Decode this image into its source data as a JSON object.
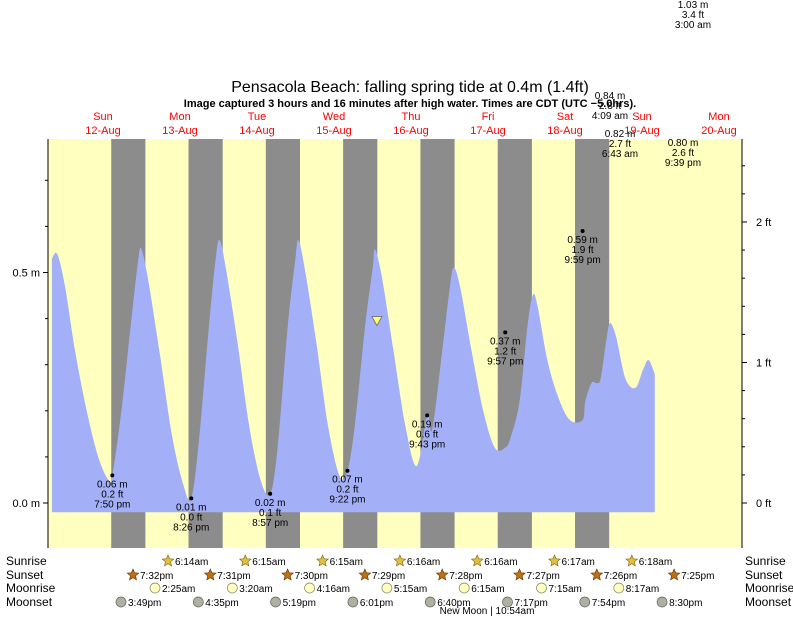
{
  "chart_data": {
    "type": "area",
    "title": "Pensacola Beach: falling  spring tide at 0.4m (1.4ft)",
    "subtitle": "Image captured 3 hours and 16 minutes after high water. Times are CDT (UTC −5.0hrs).",
    "colors": {
      "tide_fill": "#a3b0f8",
      "day_bg": "#ffffc0",
      "night_bg": "#8c8c8c",
      "day_label": "#ff0000",
      "marker": "#ffff66"
    },
    "days": [
      {
        "name": "Sun",
        "date": "12-Aug"
      },
      {
        "name": "Mon",
        "date": "13-Aug"
      },
      {
        "name": "Tue",
        "date": "14-Aug"
      },
      {
        "name": "Wed",
        "date": "15-Aug"
      },
      {
        "name": "Thu",
        "date": "16-Aug"
      },
      {
        "name": "Fri",
        "date": "17-Aug"
      },
      {
        "name": "Sat",
        "date": "18-Aug"
      },
      {
        "name": "Sun",
        "date": "19-Aug"
      },
      {
        "name": "Mon",
        "date": "20-Aug"
      }
    ],
    "y_left_ticks": [
      "0.0 m",
      "0.5 m"
    ],
    "y_right_ticks": [
      "0 ft",
      "1 ft",
      "2 ft"
    ],
    "ylim_m": [
      -0.07,
      0.78
    ],
    "current_level_m": 0.4,
    "extremes": [
      {
        "t": 1.832,
        "m": 0.06,
        "m_txt": "0.06 m",
        "ft_txt": "0.2 ft",
        "time": "7:50 pm",
        "kind": "low"
      },
      {
        "t": 2.853,
        "m": 0.01,
        "m_txt": "0.01 m",
        "ft_txt": "0.0 ft",
        "time": "8:26 pm",
        "kind": "low"
      },
      {
        "t": 3.874,
        "m": 0.02,
        "m_txt": "0.02 m",
        "ft_txt": "0.1 ft",
        "time": "8:57 pm",
        "kind": "low"
      },
      {
        "t": 4.874,
        "m": 0.07,
        "m_txt": "0.07 m",
        "ft_txt": "0.2 ft",
        "time": "9:22 pm",
        "kind": "low"
      },
      {
        "t": 5.905,
        "m": 0.19,
        "m_txt": "0.19 m",
        "ft_txt": "0.6 ft",
        "time": "9:43 pm",
        "kind": "low"
      },
      {
        "t": 6.915,
        "m": 0.37,
        "m_txt": "0.37 m",
        "ft_txt": "1.2 ft",
        "time": "9:57 pm",
        "kind": "low"
      },
      {
        "t": 7.916,
        "m": 0.59,
        "m_txt": "0.59 m",
        "ft_txt": "1.9 ft",
        "time": "9:59 pm",
        "kind": "low"
      },
      {
        "t": 8.28,
        "m": 0.82,
        "m_txt": "0.82 m",
        "ft_txt": "2.7 ft",
        "time": "6:43 am",
        "kind": "high"
      },
      {
        "t": 8.902,
        "m": 0.8,
        "m_txt": "0.80 m",
        "ft_txt": "2.6 ft",
        "time": "9:39 pm",
        "kind": "high"
      },
      {
        "t": 9.17,
        "m": 0.84,
        "m_txt": "0.84 m",
        "ft_txt": "2.8 ft",
        "time": "4:09 am",
        "kind": "high"
      },
      {
        "t": 10.125,
        "m": 1.03,
        "m_txt": "1.03 m",
        "ft_txt": "3.4 ft",
        "time": "3:00 am",
        "kind": "high"
      }
    ],
    "curve": [
      [
        1.05,
        0.53
      ],
      [
        1.12,
        0.54
      ],
      [
        1.22,
        0.47
      ],
      [
        1.35,
        0.33
      ],
      [
        1.5,
        0.2
      ],
      [
        1.65,
        0.1
      ],
      [
        1.78,
        0.05
      ],
      [
        1.832,
        0.06
      ],
      [
        1.95,
        0.2
      ],
      [
        2.08,
        0.4
      ],
      [
        2.17,
        0.53
      ],
      [
        2.21,
        0.55
      ],
      [
        2.3,
        0.48
      ],
      [
        2.45,
        0.32
      ],
      [
        2.6,
        0.15
      ],
      [
        2.75,
        0.04
      ],
      [
        2.853,
        0.01
      ],
      [
        2.95,
        0.13
      ],
      [
        3.08,
        0.38
      ],
      [
        3.17,
        0.53
      ],
      [
        3.22,
        0.57
      ],
      [
        3.3,
        0.51
      ],
      [
        3.45,
        0.35
      ],
      [
        3.6,
        0.17
      ],
      [
        3.75,
        0.05
      ],
      [
        3.874,
        0.02
      ],
      [
        3.97,
        0.12
      ],
      [
        4.1,
        0.38
      ],
      [
        4.2,
        0.53
      ],
      [
        4.24,
        0.57
      ],
      [
        4.32,
        0.51
      ],
      [
        4.47,
        0.35
      ],
      [
        4.62,
        0.17
      ],
      [
        4.77,
        0.06
      ],
      [
        4.874,
        0.07
      ],
      [
        4.97,
        0.17
      ],
      [
        5.1,
        0.38
      ],
      [
        5.2,
        0.51
      ],
      [
        5.23,
        0.55
      ],
      [
        5.32,
        0.49
      ],
      [
        5.47,
        0.33
      ],
      [
        5.62,
        0.17
      ],
      [
        5.77,
        0.08
      ],
      [
        5.905,
        0.19
      ],
      [
        5.97,
        0.16
      ],
      [
        6.1,
        0.33
      ],
      [
        6.2,
        0.47
      ],
      [
        6.25,
        0.51
      ],
      [
        6.33,
        0.47
      ],
      [
        6.48,
        0.33
      ],
      [
        6.63,
        0.2
      ],
      [
        6.78,
        0.12
      ],
      [
        6.915,
        0.37
      ],
      [
        6.98,
        0.14
      ],
      [
        7.1,
        0.22
      ],
      [
        7.2,
        0.38
      ],
      [
        7.27,
        0.45
      ],
      [
        7.33,
        0.43
      ],
      [
        7.46,
        0.31
      ],
      [
        7.6,
        0.23
      ],
      [
        7.75,
        0.18
      ],
      [
        7.916,
        0.59
      ],
      [
        7.95,
        0.22
      ],
      [
        8.03,
        0.26
      ],
      [
        8.1,
        0.26
      ],
      [
        8.15,
        0.27
      ],
      [
        8.22,
        0.35
      ],
      [
        8.27,
        0.39
      ],
      [
        8.35,
        0.36
      ],
      [
        8.47,
        0.27
      ],
      [
        8.6,
        0.25
      ],
      [
        8.7,
        0.29
      ],
      [
        8.77,
        0.31
      ],
      [
        8.85,
        0.28
      ]
    ],
    "sun_rows": [
      {
        "label": "Sunrise",
        "times": [
          "6:14am",
          "6:15am",
          "6:15am",
          "6:16am",
          "6:16am",
          "6:17am",
          "6:18am"
        ]
      },
      {
        "label": "Sunset",
        "times": [
          "7:32pm",
          "7:31pm",
          "7:30pm",
          "7:29pm",
          "7:28pm",
          "7:27pm",
          "7:26pm",
          "7:25pm"
        ]
      },
      {
        "label": "Moonrise",
        "times": [
          "2:25am",
          "3:20am",
          "4:16am",
          "5:15am",
          "6:15am",
          "7:15am",
          "8:17am"
        ]
      },
      {
        "label": "Moonset",
        "times": [
          "3:49pm",
          "4:35pm",
          "5:19pm",
          "6:01pm",
          "6:40pm",
          "7:17pm",
          "7:54pm",
          "8:30pm"
        ]
      }
    ],
    "moon_phase": "New Moon | 10:54am",
    "grid": false,
    "legend": "none"
  }
}
